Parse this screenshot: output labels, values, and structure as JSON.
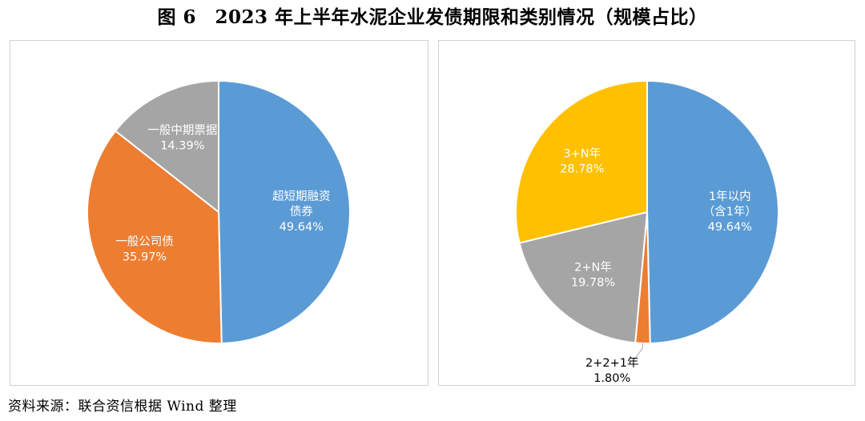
{
  "figure_title": "图 6　2023 年上半年水泥企业发债期限和类别情况（规模占比）",
  "source_note": "资料来源：联合资信根据 Wind 整理",
  "colors": {
    "blue": "#5b9bd5",
    "orange": "#ed7d31",
    "gray": "#a5a5a5",
    "gold": "#ffc000"
  },
  "chart_data": [
    {
      "type": "pie",
      "slices": [
        {
          "label_lines": [
            "超短期融资",
            "债券"
          ],
          "value": 49.64,
          "value_label": "49.64%",
          "color": "#5b9bd5",
          "label_color": "#ffffff"
        },
        {
          "label_lines": [
            "一般公司债"
          ],
          "value": 35.97,
          "value_label": "35.97%",
          "color": "#ed7d31",
          "label_color": "#ffffff"
        },
        {
          "label_lines": [
            "一般中期票据"
          ],
          "value": 14.39,
          "value_label": "14.39%",
          "color": "#a5a5a5",
          "label_color": "#ffffff"
        }
      ]
    },
    {
      "type": "pie",
      "slices": [
        {
          "label_lines": [
            "1年以内",
            "（含1年）"
          ],
          "value": 49.64,
          "value_label": "49.64%",
          "color": "#5b9bd5",
          "label_color": "#ffffff"
        },
        {
          "label_lines": [
            "2+2+1年"
          ],
          "value": 1.8,
          "value_label": "1.80%",
          "color": "#ed7d31",
          "label_color": "#000000",
          "outside": true
        },
        {
          "label_lines": [
            "2+N年"
          ],
          "value": 19.78,
          "value_label": "19.78%",
          "color": "#a5a5a5",
          "label_color": "#ffffff"
        },
        {
          "label_lines": [
            "3+N年"
          ],
          "value": 28.78,
          "value_label": "28.78%",
          "color": "#ffc000",
          "label_color": "#ffffff"
        }
      ]
    }
  ]
}
